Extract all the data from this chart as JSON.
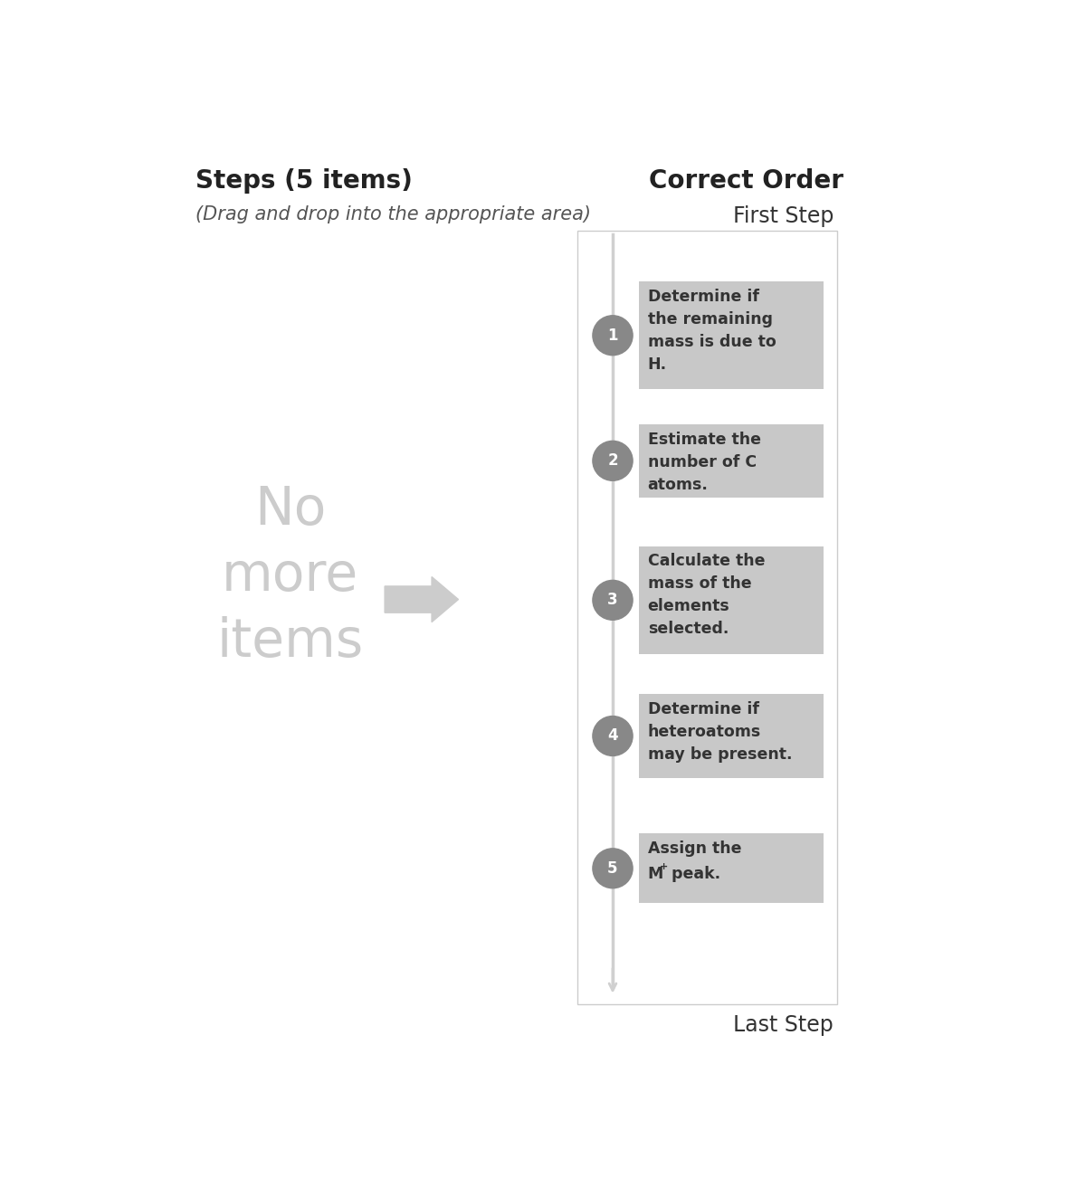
{
  "title_left": "Steps (5 items)",
  "subtitle_left": "(Drag and drop into the appropriate area)",
  "title_right": "Correct Order",
  "label_top": "First Step",
  "label_bottom": "Last Step",
  "no_more_text": "No\nmore\nitems",
  "steps": [
    {
      "num": "1",
      "text": "Determine if\nthe remaining\nmass is due to\nH."
    },
    {
      "num": "2",
      "text": "Estimate the\nnumber of C\natoms."
    },
    {
      "num": "3",
      "text": "Calculate the\nmass of the\nelements\nselected."
    },
    {
      "num": "4",
      "text": "Determine if\nheteroatoms\nmay be present."
    },
    {
      "num": "5",
      "text": "Assign the\nM⁺ peak."
    }
  ],
  "bg_color": "#ffffff",
  "box_color": "#c8c8c8",
  "box_border_color": "#b8b8b8",
  "circle_color": "#888888",
  "circle_text_color": "#ffffff",
  "text_color": "#333333",
  "no_more_color": "#cccccc",
  "arrow_color": "#cccccc",
  "panel_border_color": "#cccccc",
  "panel_bg_color": "#ffffff",
  "line_color": "#d0d0d0",
  "title_fontsize": 20,
  "subtitle_fontsize": 15,
  "label_fontsize": 17,
  "step_text_fontsize": 12.5,
  "no_more_fontsize": 42,
  "circle_num_fontsize": 12
}
